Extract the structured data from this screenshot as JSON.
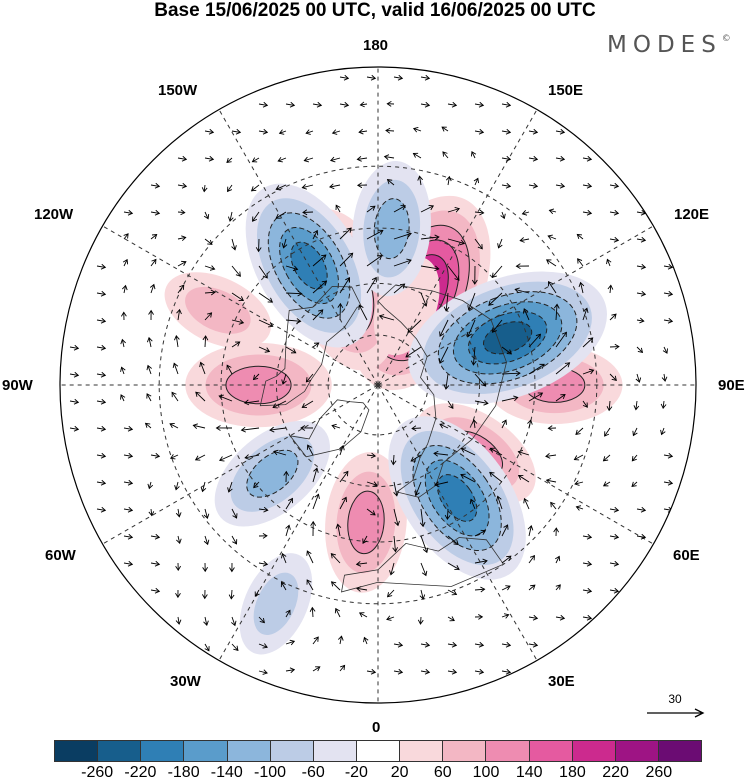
{
  "title": "Base 15/06/2025 00 UTC, valid 16/06/2025 00 UTC",
  "brand": {
    "text": "MODES",
    "mark": "©"
  },
  "map": {
    "projection": "north-polar-stereographic",
    "longitude_labels": {
      "top": "180",
      "bottom": "0",
      "left": "90W",
      "right": "90E",
      "nw1": "150W",
      "nw2": "120W",
      "ne1": "150E",
      "ne2": "120E",
      "sw1": "60W",
      "sw2": "30W",
      "se1": "60E",
      "se2": "30E"
    },
    "reference_vector": {
      "label": "30",
      "icon": "arrow-right-icon"
    }
  },
  "colorbar": {
    "colors": [
      "#0a3d62",
      "#175e8c",
      "#2f7fb5",
      "#5a9ccb",
      "#8cb6dc",
      "#bccce6",
      "#e3e3f1",
      "#ffffff",
      "#f9d9dc",
      "#f3b7c4",
      "#ee8cb1",
      "#e55aa0",
      "#cc2a8e",
      "#9e1484",
      "#6b0c73"
    ],
    "tick_labels": [
      "-260",
      "-220",
      "-180",
      "-140",
      "-100",
      "-60",
      "-20",
      "20",
      "60",
      "100",
      "140",
      "180",
      "220",
      "260"
    ]
  },
  "anomalies": {
    "positive_centers": [
      {
        "lon": 155,
        "lat": 60,
        "value": 240
      },
      {
        "lon": -160,
        "lat": 60,
        "value": 170
      },
      {
        "lon": -90,
        "lat": 55,
        "value": 130
      },
      {
        "lon": 90,
        "lat": 40,
        "value": 110
      },
      {
        "lon": 55,
        "lat": 55,
        "value": 110
      },
      {
        "lon": -5,
        "lat": 50,
        "value": 120
      },
      {
        "lon": -115,
        "lat": 40,
        "value": 70
      },
      {
        "lon": 160,
        "lat": 65,
        "value": 50
      }
    ],
    "negative_centers": [
      {
        "lon": 110,
        "lat": 50,
        "value": -240
      },
      {
        "lon": -150,
        "lat": 50,
        "value": -190
      },
      {
        "lon": 35,
        "lat": 50,
        "value": -200
      },
      {
        "lon": -50,
        "lat": 50,
        "value": -110
      },
      {
        "lon": 175,
        "lat": 45,
        "value": -110
      },
      {
        "lon": -25,
        "lat": 25,
        "value": -60
      }
    ]
  }
}
